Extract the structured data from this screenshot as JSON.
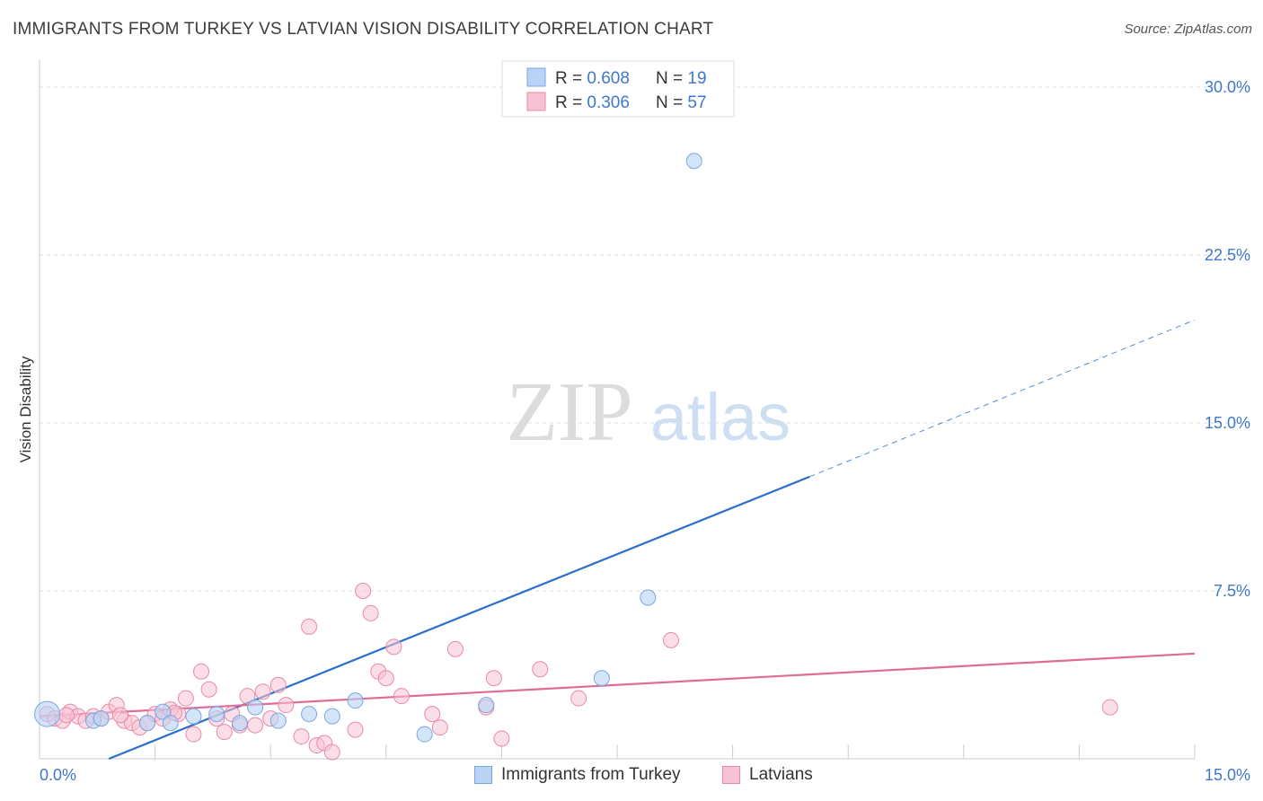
{
  "header": {
    "title": "IMMIGRANTS FROM TURKEY VS LATVIAN VISION DISABILITY CORRELATION CHART",
    "source": "Source: ZipAtlas.com"
  },
  "watermark": {
    "zip": "ZIP",
    "atlas": "atlas"
  },
  "colors": {
    "blue_fill": "#b8d3f5",
    "blue_stroke": "#7aa7e0",
    "blue_line": "#2a6fcc",
    "pink_fill": "#f7c3d4",
    "pink_stroke": "#e88aaa",
    "pink_line": "#e06b97",
    "tick_label": "#3f78c8",
    "grid": "#dddddd"
  },
  "legend_top": {
    "rows": [
      {
        "r_label": "R = ",
        "r_value": "0.608",
        "n_label": "N = ",
        "n_value": "19"
      },
      {
        "r_label": "R = ",
        "r_value": "0.306",
        "n_label": "N = ",
        "n_value": "57"
      }
    ]
  },
  "chart_data": {
    "type": "scatter",
    "title": "IMMIGRANTS FROM TURKEY VS LATVIAN VISION DISABILITY CORRELATION CHART",
    "xlabel": "",
    "ylabel": "Vision Disability",
    "xlim": [
      0,
      15
    ],
    "ylim": [
      0,
      30
    ],
    "x_tick_labels": [
      "0.0%",
      "15.0%"
    ],
    "y_ticks": [
      7.5,
      15.0,
      22.5,
      30.0
    ],
    "y_tick_labels": [
      "7.5%",
      "15.0%",
      "22.5%",
      "30.0%"
    ],
    "grid": true,
    "legend_position": "top-center",
    "series": [
      {
        "name": "Immigrants from Turkey",
        "color": "#b8d3f5",
        "r": 0.608,
        "n": 19,
        "points": [
          [
            0.1,
            2.0
          ],
          [
            0.7,
            1.7
          ],
          [
            0.8,
            1.8
          ],
          [
            1.4,
            1.6
          ],
          [
            1.6,
            2.1
          ],
          [
            1.7,
            1.6
          ],
          [
            2.0,
            1.9
          ],
          [
            2.3,
            2.0
          ],
          [
            2.6,
            1.6
          ],
          [
            2.8,
            2.3
          ],
          [
            3.1,
            1.7
          ],
          [
            3.5,
            2.0
          ],
          [
            3.8,
            1.9
          ],
          [
            4.1,
            2.6
          ],
          [
            5.0,
            1.1
          ],
          [
            5.8,
            2.4
          ],
          [
            7.3,
            3.6
          ],
          [
            7.9,
            7.2
          ],
          [
            8.5,
            26.7
          ]
        ],
        "trend": {
          "x0": 0.9,
          "y0": 0.0,
          "x1": 10.0,
          "y1": 12.6,
          "dash_to_x": 15.0,
          "dash_to_y": 19.6
        }
      },
      {
        "name": "Latvians",
        "color": "#f7c3d4",
        "r": 0.306,
        "n": 57,
        "points": [
          [
            0.1,
            2.0
          ],
          [
            0.2,
            1.8
          ],
          [
            0.3,
            1.7
          ],
          [
            0.4,
            2.1
          ],
          [
            0.5,
            1.9
          ],
          [
            0.6,
            1.7
          ],
          [
            0.7,
            1.9
          ],
          [
            0.8,
            1.8
          ],
          [
            0.9,
            2.1
          ],
          [
            1.0,
            2.4
          ],
          [
            1.1,
            1.7
          ],
          [
            1.2,
            1.6
          ],
          [
            1.3,
            1.4
          ],
          [
            1.4,
            1.6
          ],
          [
            1.5,
            2.0
          ],
          [
            1.6,
            1.8
          ],
          [
            1.7,
            2.2
          ],
          [
            1.8,
            2.0
          ],
          [
            1.9,
            2.7
          ],
          [
            2.0,
            1.1
          ],
          [
            2.1,
            3.9
          ],
          [
            2.2,
            3.1
          ],
          [
            2.3,
            1.8
          ],
          [
            2.4,
            1.2
          ],
          [
            2.5,
            2.0
          ],
          [
            2.6,
            1.5
          ],
          [
            2.7,
            2.8
          ],
          [
            2.8,
            1.5
          ],
          [
            2.9,
            3.0
          ],
          [
            3.0,
            1.8
          ],
          [
            3.1,
            3.3
          ],
          [
            3.2,
            2.4
          ],
          [
            3.4,
            1.0
          ],
          [
            3.5,
            5.9
          ],
          [
            3.6,
            0.6
          ],
          [
            3.7,
            0.7
          ],
          [
            3.8,
            0.3
          ],
          [
            4.1,
            1.3
          ],
          [
            4.2,
            7.5
          ],
          [
            4.3,
            6.5
          ],
          [
            4.4,
            3.9
          ],
          [
            4.5,
            3.6
          ],
          [
            4.6,
            5.0
          ],
          [
            4.7,
            2.8
          ],
          [
            5.1,
            2.0
          ],
          [
            5.2,
            1.4
          ],
          [
            5.4,
            4.9
          ],
          [
            5.8,
            2.3
          ],
          [
            5.9,
            3.6
          ],
          [
            6.0,
            0.9
          ],
          [
            6.5,
            4.0
          ],
          [
            7.0,
            2.7
          ],
          [
            8.2,
            5.3
          ],
          [
            13.9,
            2.3
          ],
          [
            0.35,
            1.95
          ],
          [
            1.05,
            1.95
          ],
          [
            1.75,
            2.05
          ]
        ],
        "trend": {
          "x0": 0.0,
          "y0": 1.9,
          "x1": 15.0,
          "y1": 4.7
        }
      }
    ]
  },
  "legend_bottom": {
    "items": [
      {
        "label": "Immigrants from Turkey"
      },
      {
        "label": "Latvians"
      }
    ]
  }
}
